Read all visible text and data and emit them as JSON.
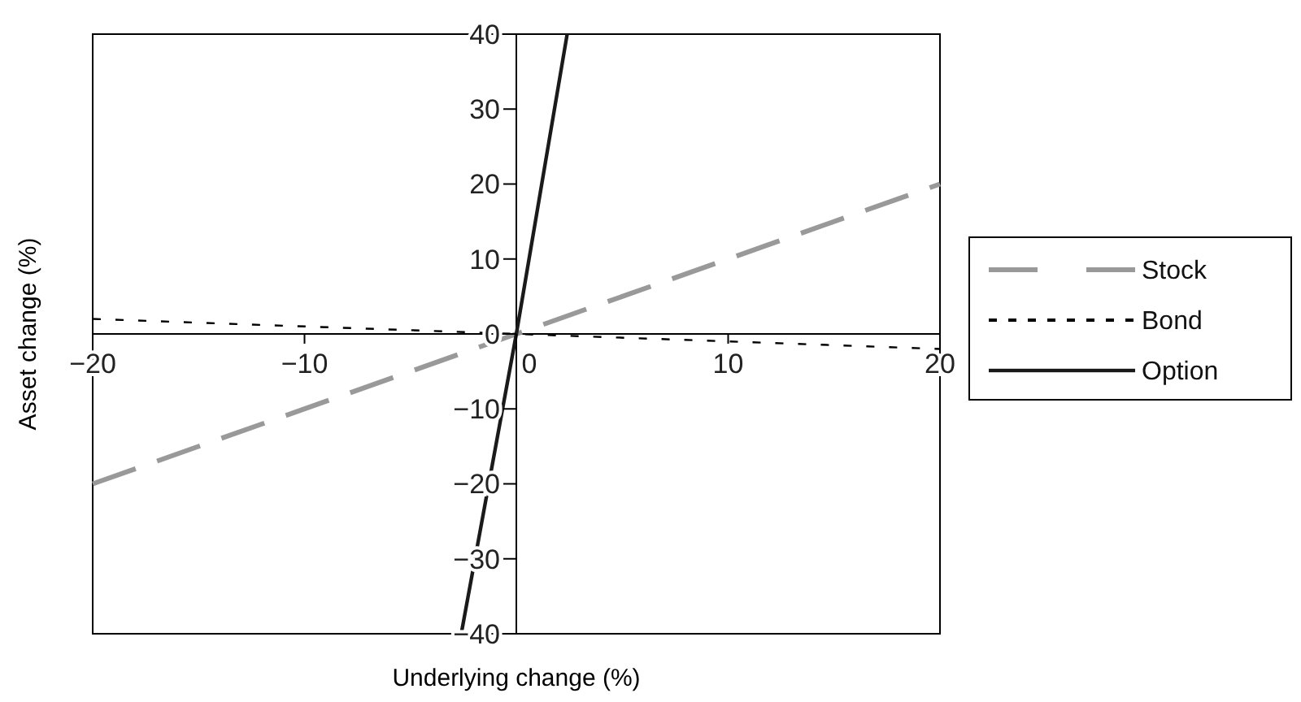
{
  "chart_data": {
    "type": "line",
    "xlabel": "Underlying change (%)",
    "ylabel": "Asset change (%)",
    "xlim": [
      -20,
      20
    ],
    "ylim": [
      -40,
      40
    ],
    "xticks": [
      -20,
      -10,
      0,
      10,
      20
    ],
    "yticks": [
      -40,
      -30,
      -20,
      -10,
      0,
      10,
      20,
      30,
      40
    ],
    "grid": false,
    "legend": "right",
    "marker": "none",
    "series": [
      {
        "name": "Stock",
        "color": "#999999",
        "line_style": "dashed",
        "x": [
          -20,
          0,
          20
        ],
        "values": [
          -20,
          0,
          20
        ]
      },
      {
        "name": "Bond",
        "color": "#000000",
        "line_style": "dotted",
        "x": [
          -20,
          0,
          20
        ],
        "values": [
          2,
          0,
          -2
        ]
      },
      {
        "name": "Option",
        "color": "#1a1a1a",
        "line_style": "solid",
        "x": [
          -2.6,
          0,
          2.4
        ],
        "values": [
          -40,
          0,
          40
        ]
      }
    ]
  }
}
